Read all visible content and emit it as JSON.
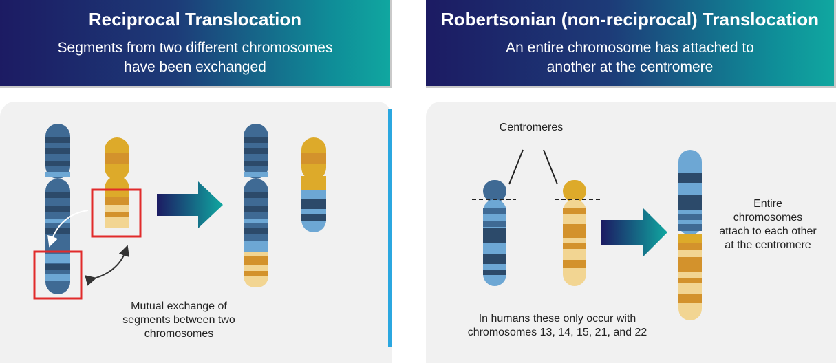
{
  "left": {
    "title": "Reciprocal Translocation",
    "subtitle": "Segments from two different chromosomes\nhave been exchanged",
    "caption": "Mutual exchange of\nsegments between two\nchromosomes"
  },
  "right": {
    "title": "Robertsonian (non-reciprocal) Translocation",
    "subtitle": "An entire chromosome has attached to\nanother at the centromere",
    "centromere_label": "Centromeres",
    "result_label": "Entire\nchromosomes\nattach to each other\nat the centromere",
    "footnote": "In humans these only occur with\nchromosomes 13, 14, 15, 21, and 22"
  },
  "colors": {
    "blue_base": "#3f6a94",
    "blue_dark": "#2c4a6a",
    "blue_light": "#6da7d4",
    "gold_base": "#ddaa2a",
    "gold_dark": "#d3922c",
    "gold_light": "#f2d592",
    "highlight_red": "#e12b2b",
    "arrow_gradient": [
      "#1c1b63",
      "#10a7a0"
    ]
  }
}
